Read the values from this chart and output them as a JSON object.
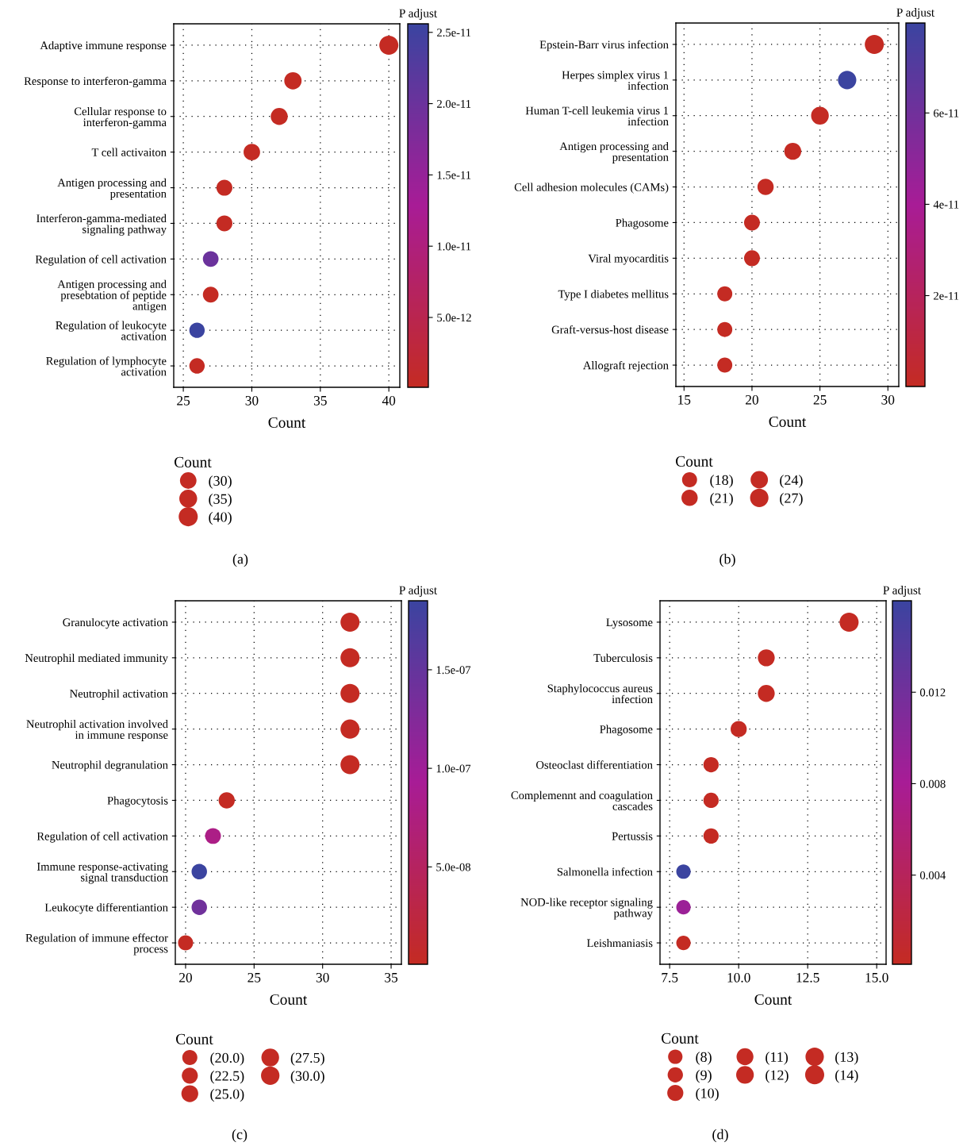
{
  "chart_data": [
    {
      "type": "bubble",
      "orientation": "horizontal",
      "xlabel": "Count",
      "clabel": "P adjust",
      "legend_title": "Count",
      "grid": true,
      "marker": "circle",
      "categories": [
        "Adaptive immune response",
        "Response to interferon-gamma",
        "Cellular response to\ninterferon-gamma",
        "T cell activaiton",
        "Antigen processing and\npresentation",
        "Interferon-gamma-mediated\nsignaling pathway",
        "Regulation of cell activation",
        "Antigen processing and\npresebtation of peptide\nantigen",
        "Regulation of leukocyte\nactivation",
        "Regulation of lymphocyte\nactivation"
      ],
      "values": [
        40,
        33,
        32,
        30,
        28,
        28,
        27,
        27,
        26,
        26
      ],
      "sizes": [
        40,
        33,
        32,
        30,
        28,
        28,
        27,
        27,
        26,
        26
      ],
      "cvalues": [
        1e-13,
        1e-13,
        1e-13,
        1e-13,
        1e-13,
        1e-13,
        2e-11,
        1e-13,
        2.56e-11,
        1e-13
      ],
      "xlim": [
        24.3,
        40.8
      ],
      "xticks": [
        25,
        30,
        35,
        40
      ],
      "clim": [
        1e-13,
        2.56e-11
      ],
      "cticks": [
        {
          "value": 5e-12,
          "label": "5.0e-12"
        },
        {
          "value": 1e-11,
          "label": "1.0e-11"
        },
        {
          "value": 1.5e-11,
          "label": "1.5e-11"
        },
        {
          "value": 2e-11,
          "label": "2.0e-11"
        },
        {
          "value": 2.5e-11,
          "label": "2.5e-11"
        }
      ],
      "size_legend": [
        {
          "value": 30,
          "label": "(30)"
        },
        {
          "value": 35,
          "label": "(35)"
        },
        {
          "value": 40,
          "label": "(40)"
        }
      ],
      "annotations": [
        "(a)"
      ]
    },
    {
      "type": "bubble",
      "orientation": "horizontal",
      "xlabel": "Count",
      "clabel": "P adjust",
      "legend_title": "Count",
      "grid": true,
      "marker": "circle",
      "categories": [
        "Epstein-Barr virus infection",
        "Herpes simplex virus 1\ninfection",
        "Human T-cell leukemia virus 1\ninfection",
        "Antigen processing and\npresentation",
        "Cell adhesion molecules (CAMs)",
        "Phagosome",
        "Viral myocarditis",
        "Type I diabetes mellitus",
        "Graft-versus-host disease",
        "Allograft rejection"
      ],
      "values": [
        29,
        27,
        25,
        23,
        21,
        20,
        20,
        18,
        18,
        18
      ],
      "sizes": [
        29,
        27,
        25,
        23,
        21,
        20,
        20,
        18,
        18,
        18
      ],
      "cvalues": [
        1e-13,
        7.97e-11,
        1e-13,
        1e-13,
        1e-13,
        1e-13,
        1e-13,
        1e-13,
        1e-13,
        1e-13
      ],
      "xlim": [
        14.4,
        30.8
      ],
      "xticks": [
        15,
        20,
        25,
        30
      ],
      "clim": [
        1e-13,
        7.97e-11
      ],
      "cticks": [
        {
          "value": 2e-11,
          "label": "2e-11"
        },
        {
          "value": 4e-11,
          "label": "4e-11"
        },
        {
          "value": 6e-11,
          "label": "6e-11"
        }
      ],
      "size_legend": [
        {
          "value": 18,
          "label": "(18)"
        },
        {
          "value": 21,
          "label": "(21)"
        },
        {
          "value": 24,
          "label": "(24)"
        },
        {
          "value": 27,
          "label": "(27)"
        }
      ],
      "annotations": [
        "(b)"
      ]
    },
    {
      "type": "bubble",
      "orientation": "horizontal",
      "xlabel": "Count",
      "clabel": "P adjust",
      "legend_title": "Count",
      "grid": true,
      "marker": "circle",
      "categories": [
        "Granulocyte activation",
        "Neutrophil mediated immunity",
        "Neutrophil activation",
        "Neutrophil activation involved\nin immune response",
        "Neutrophil degranulation",
        "Phagocytosis",
        "Regulation of cell activation",
        "Immune response-activating\nsignal transduction",
        "Leukocyte differentiantion",
        "Regulation of immune effector\nprocess"
      ],
      "values": [
        32,
        32,
        32,
        32,
        32,
        23,
        22,
        21,
        21,
        20
      ],
      "sizes": [
        32,
        32,
        32,
        32,
        32,
        23,
        22,
        21,
        21,
        20
      ],
      "cvalues": [
        1e-09,
        1e-09,
        1e-09,
        1e-09,
        1e-09,
        1e-09,
        8e-08,
        1.85e-07,
        1.4e-07,
        1e-09
      ],
      "xlim": [
        19.25,
        35.75
      ],
      "xticks": [
        20,
        25,
        30,
        35
      ],
      "clim": [
        6e-10,
        1.85e-07
      ],
      "cticks": [
        {
          "value": 5e-08,
          "label": "5.0e-08"
        },
        {
          "value": 1e-07,
          "label": "1.0e-07"
        },
        {
          "value": 1.5e-07,
          "label": "1.5e-07"
        }
      ],
      "size_legend": [
        {
          "value": 20.0,
          "label": "(20.0)"
        },
        {
          "value": 22.5,
          "label": "(22.5)"
        },
        {
          "value": 25.0,
          "label": "(25.0)"
        },
        {
          "value": 27.5,
          "label": "(27.5)"
        },
        {
          "value": 30.0,
          "label": "(30.0)"
        }
      ],
      "annotations": [
        "(c)"
      ]
    },
    {
      "type": "bubble",
      "orientation": "horizontal",
      "xlabel": "Count",
      "clabel": "P adjust",
      "legend_title": "Count",
      "grid": true,
      "marker": "circle",
      "categories": [
        "Lysosome",
        "Tuberculosis",
        "Staphylococcus aureus\ninfection",
        "Phagosome",
        "Osteoclast differentiation",
        "Complemennt and coagulation\ncascades",
        "Pertussis",
        "Salmonella infection",
        "NOD-like receptor signaling\npathway",
        "Leishmaniasis"
      ],
      "values": [
        14,
        11,
        11,
        10,
        9,
        9,
        9,
        8,
        8,
        8
      ],
      "sizes": [
        14,
        11,
        11,
        10,
        9,
        9,
        9,
        8,
        8,
        8
      ],
      "cvalues": [
        0.0001,
        0.0001,
        0.0001,
        0.0001,
        0.0001,
        0.0001,
        0.0001,
        0.016,
        0.009,
        0.0001
      ],
      "xlim": [
        7.15,
        15.34
      ],
      "xticks": [
        {
          "value": 7.5,
          "label": "7.5"
        },
        {
          "value": 10,
          "label": "10.0"
        },
        {
          "value": 12.5,
          "label": "12.5"
        },
        {
          "value": 15,
          "label": "15.0"
        }
      ],
      "clim": [
        0.0001,
        0.016
      ],
      "cticks": [
        0.004,
        0.008,
        0.012
      ],
      "size_legend": [
        {
          "value": 8,
          "label": "(8)"
        },
        {
          "value": 9,
          "label": "(9)"
        },
        {
          "value": 10,
          "label": "(10)"
        },
        {
          "value": 11,
          "label": "(11)"
        },
        {
          "value": 12,
          "label": "(12)"
        },
        {
          "value": 13,
          "label": "(13)"
        },
        {
          "value": 14,
          "label": "(14)"
        }
      ],
      "annotations": [
        "(d)"
      ]
    }
  ]
}
